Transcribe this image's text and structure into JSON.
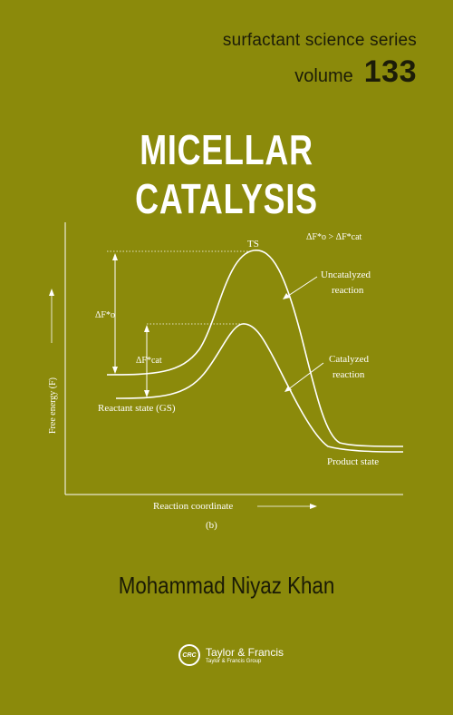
{
  "series": {
    "name": "surfactant science series",
    "volume_label": "volume",
    "volume_number": "133"
  },
  "book": {
    "title": "MICELLAR CATALYSIS",
    "author": "Mohammad Niyaz Khan"
  },
  "publisher": {
    "logo_text": "CRC",
    "name": "Taylor & Francis",
    "group": "Taylor & Francis Group"
  },
  "diagram": {
    "y_axis_label": "Free energy (F)",
    "x_axis_label": "Reaction coordinate",
    "panel_label": "(b)",
    "ts_label": "TS",
    "relation_label": "ΔF*o > ΔF*cat",
    "dF0_label": "ΔF*o",
    "dFcat_label": "ΔF*cat",
    "uncatalyzed_label_1": "Uncatalyzed",
    "uncatalyzed_label_2": "reaction",
    "catalyzed_label_1": "Catalyzed",
    "catalyzed_label_2": "reaction",
    "reactant_label": "Reactant state (GS)",
    "product_label": "Product state"
  }
}
